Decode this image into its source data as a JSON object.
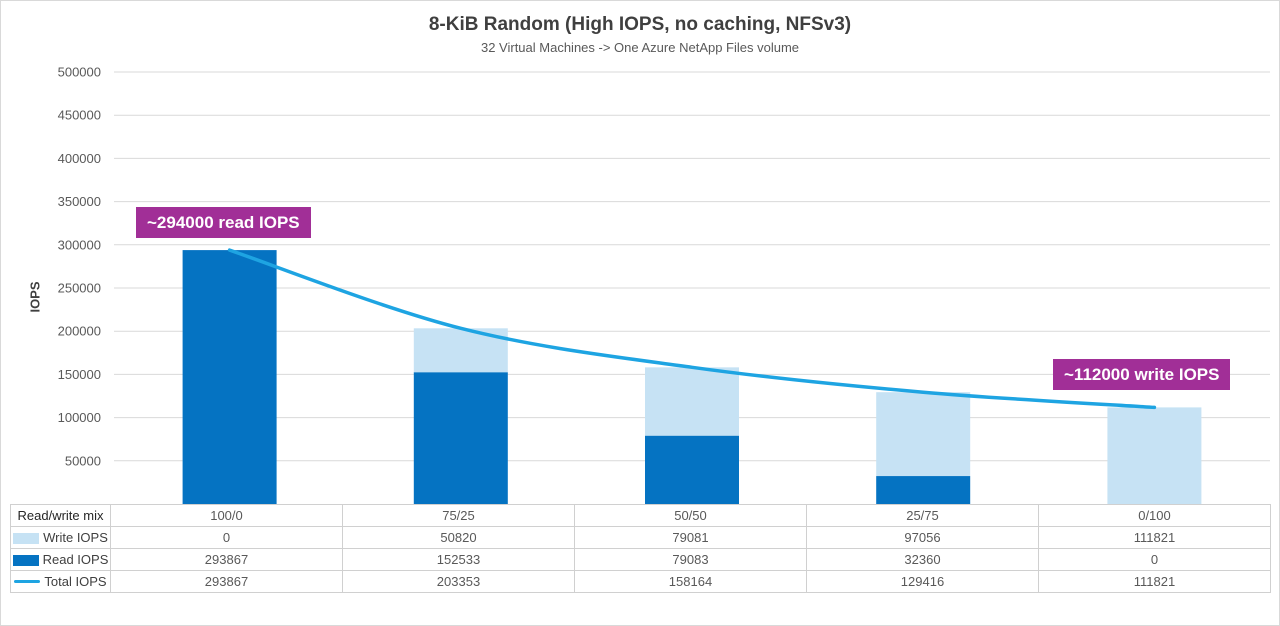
{
  "chart_data": {
    "type": "combo-stacked-bar-line",
    "title": "8-KiB Random (High IOPS, no caching, NFSv3)",
    "subtitle": "32 Virtual Machines -> One Azure NetApp Files volume",
    "xlabel": "",
    "ylabel": "IOPS",
    "categories": [
      "100/0",
      "75/25",
      "50/50",
      "25/75",
      "0/100"
    ],
    "series": [
      {
        "name": "Write IOPS",
        "type": "bar-stacked",
        "color": "#c6e2f4",
        "values": [
          0,
          50820,
          79081,
          97056,
          111821
        ]
      },
      {
        "name": "Read IOPS",
        "type": "bar-stacked",
        "color": "#0573c2",
        "values": [
          293867,
          152533,
          79083,
          32360,
          0
        ]
      },
      {
        "name": "Total IOPS",
        "type": "line",
        "color": "#1ea4e2",
        "values": [
          293867,
          203353,
          158164,
          129416,
          111821
        ]
      }
    ],
    "ylim": [
      0,
      500000
    ],
    "yticks": [
      50000,
      100000,
      150000,
      200000,
      250000,
      300000,
      350000,
      400000,
      450000,
      500000
    ],
    "grid": true,
    "legend_position": "data-table-left-column",
    "annotations": [
      {
        "text": "~294000 read IOPS",
        "bg": "#a12f97",
        "points_to": "100/0 bar top"
      },
      {
        "text": "~112000 write IOPS",
        "bg": "#a12f97",
        "points_to": "0/100 bar top"
      }
    ]
  },
  "table": {
    "row_header": "Read/write mix"
  },
  "colors": {
    "grid": "#d9d9d9",
    "tick_text": "#595959",
    "annotation_bg": "#a12f97",
    "annotation_text": "#ffffff"
  }
}
